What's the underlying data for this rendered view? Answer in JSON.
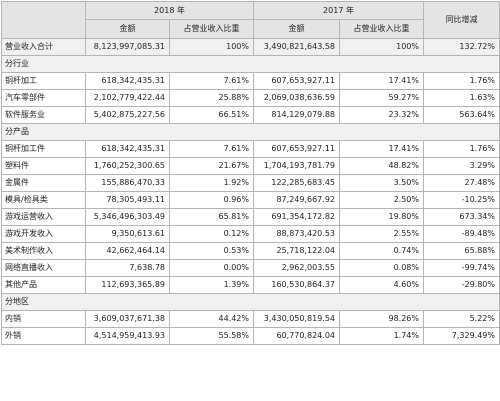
{
  "header": {
    "year_2018": "2018 年",
    "year_2017": "2017 年",
    "yoy": "同比增减",
    "amount": "金额",
    "share": "占营业收入比重"
  },
  "rows": [
    {
      "kind": "data",
      "shade": true,
      "label": "营业收入合计",
      "amt2018": "8,123,997,085.31",
      "pct2018": "100%",
      "amt2017": "3,490,821,643.58",
      "pct2017": "100%",
      "yoy": "132.72%"
    },
    {
      "kind": "section",
      "shade": true,
      "label": "分行业"
    },
    {
      "kind": "data",
      "label": "铜杆加工",
      "amt2018": "618,342,435.31",
      "pct2018": "7.61%",
      "amt2017": "607,653,927.11",
      "pct2017": "17.41%",
      "yoy": "1.76%"
    },
    {
      "kind": "data",
      "label": "汽车零部件",
      "amt2018": "2,102,779,422.44",
      "pct2018": "25.88%",
      "amt2017": "2,069,038,636.59",
      "pct2017": "59.27%",
      "yoy": "1.63%"
    },
    {
      "kind": "data",
      "label": "软件服务业",
      "amt2018": "5,402,875,227.56",
      "pct2018": "66.51%",
      "amt2017": "814,129,079.88",
      "pct2017": "23.32%",
      "yoy": "563.64%"
    },
    {
      "kind": "section",
      "shade": true,
      "label": "分产品"
    },
    {
      "kind": "data",
      "label": "铜杆加工件",
      "amt2018": "618,342,435.31",
      "pct2018": "7.61%",
      "amt2017": "607,653,927.11",
      "pct2017": "17.41%",
      "yoy": "1.76%"
    },
    {
      "kind": "data",
      "label": "塑料件",
      "amt2018": "1,760,252,300.65",
      "pct2018": "21.67%",
      "amt2017": "1,704,193,781.79",
      "pct2017": "48.82%",
      "yoy": "3.29%"
    },
    {
      "kind": "data",
      "label": "金属件",
      "amt2018": "155,886,470.33",
      "pct2018": "1.92%",
      "amt2017": "122,285,683.45",
      "pct2017": "3.50%",
      "yoy": "27.48%"
    },
    {
      "kind": "data",
      "label": "模具/检具类",
      "amt2018": "78,305,493.11",
      "pct2018": "0.96%",
      "amt2017": "87,249,667.92",
      "pct2017": "2.50%",
      "yoy": "-10.25%"
    },
    {
      "kind": "data",
      "label": "游戏运营收入",
      "amt2018": "5,346,496,303.49",
      "pct2018": "65.81%",
      "amt2017": "691,354,172.82",
      "pct2017": "19.80%",
      "yoy": "673.34%"
    },
    {
      "kind": "data",
      "label": "游戏开发收入",
      "amt2018": "9,350,613.61",
      "pct2018": "0.12%",
      "amt2017": "88,873,420.53",
      "pct2017": "2.55%",
      "yoy": "-89.48%"
    },
    {
      "kind": "data",
      "label": "美术制作收入",
      "amt2018": "42,662,464.14",
      "pct2018": "0.53%",
      "amt2017": "25,718,122.04",
      "pct2017": "0.74%",
      "yoy": "65.88%"
    },
    {
      "kind": "data",
      "label": "网络直播收入",
      "amt2018": "7,638.78",
      "pct2018": "0.00%",
      "amt2017": "2,962,003.55",
      "pct2017": "0.08%",
      "yoy": "-99.74%"
    },
    {
      "kind": "data",
      "label": "其他产品",
      "amt2018": "112,693,365.89",
      "pct2018": "1.39%",
      "amt2017": "160,530,864.37",
      "pct2017": "4.60%",
      "yoy": "-29.80%"
    },
    {
      "kind": "section",
      "shade": true,
      "label": "分地区"
    },
    {
      "kind": "data",
      "label": "内销",
      "amt2018": "3,609,037,671.38",
      "pct2018": "44.42%",
      "amt2017": "3,430,050,819.54",
      "pct2017": "98.26%",
      "yoy": "5.22%"
    },
    {
      "kind": "data",
      "label": "外销",
      "amt2018": "4,514,959,413.93",
      "pct2018": "55.58%",
      "amt2017": "60,770,824.04",
      "pct2017": "1.74%",
      "yoy": "7,329.49%"
    }
  ]
}
